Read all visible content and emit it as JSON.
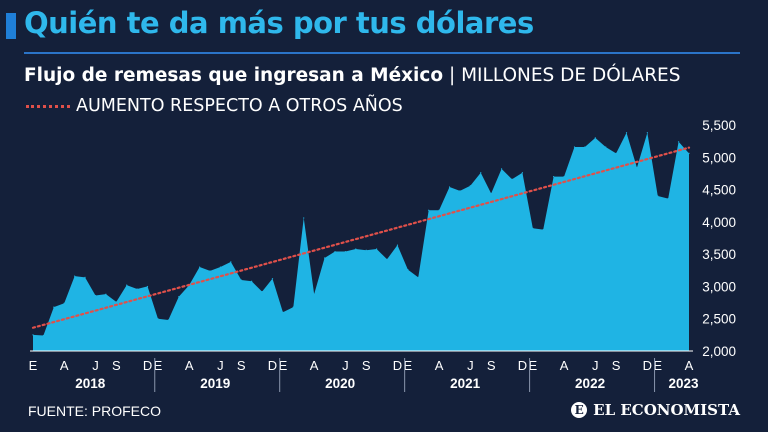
{
  "headline": "Quién te da más por tus dólares",
  "subtitle": {
    "main": "Flujo de remesas que ingresan a México",
    "separator": "|",
    "unit": "MILLONES DE DÓLARES"
  },
  "legend": {
    "trend_label": "AUMENTO RESPECTO A OTROS AÑOS"
  },
  "colors": {
    "area": "#1fb4e4",
    "trend": "#e0504a",
    "background": "#14203a",
    "headline": "#2fb8ec",
    "rule": "#2b74c8"
  },
  "footer": {
    "source": "FUENTE: PROFECO",
    "brand": "EL ECONOMISTA",
    "brand_icon": "E"
  },
  "chart_data": {
    "type": "area",
    "title": "Flujo de remesas que ingresan a México",
    "ylabel": "MILLONES DE DÓLARES",
    "xlabel": "",
    "ylim": [
      2000,
      5500
    ],
    "yticks": [
      2000,
      2500,
      3000,
      3500,
      4000,
      4500,
      5000,
      5500
    ],
    "ytick_labels": [
      "2,000",
      "2,500",
      "3,000",
      "3,500",
      "4,000",
      "4,500",
      "5,000",
      "5,500"
    ],
    "month_ticks": [
      "E",
      "A",
      "J",
      "S",
      "D"
    ],
    "years": [
      {
        "label": "2018",
        "months": [
          "E",
          "A",
          "J",
          "S",
          "D"
        ]
      },
      {
        "label": "2019",
        "months": [
          "E",
          "A",
          "J",
          "S",
          "D"
        ]
      },
      {
        "label": "2020",
        "months": [
          "E",
          "A",
          "J",
          "S",
          "D"
        ]
      },
      {
        "label": "2021",
        "months": [
          "E",
          "A",
          "J",
          "S",
          "D"
        ]
      },
      {
        "label": "2022",
        "months": [
          "E",
          "A",
          "J",
          "S",
          "D"
        ]
      },
      {
        "label": "2023",
        "months": [
          "E",
          "A"
        ]
      }
    ],
    "series": [
      {
        "name": "Remesas",
        "values": [
          2250,
          2240,
          2680,
          2740,
          3160,
          3140,
          2860,
          2880,
          2760,
          3020,
          2960,
          3000,
          2500,
          2480,
          2840,
          3020,
          3300,
          3240,
          3300,
          3380,
          3100,
          3080,
          2920,
          3120,
          2600,
          2680,
          4060,
          2880,
          3440,
          3540,
          3540,
          3580,
          3560,
          3580,
          3420,
          3640,
          3260,
          3140,
          4180,
          4180,
          4540,
          4480,
          4560,
          4760,
          4440,
          4820,
          4660,
          4760,
          3900,
          3880,
          4700,
          4700,
          5160,
          5160,
          5300,
          5160,
          5060,
          5380,
          4840,
          5380,
          4400,
          4360,
          5240,
          5060
        ]
      },
      {
        "name": "AUMENTO RESPECTO A OTROS AÑOS",
        "type": "trend",
        "start": 2360,
        "end": 5150
      }
    ]
  }
}
